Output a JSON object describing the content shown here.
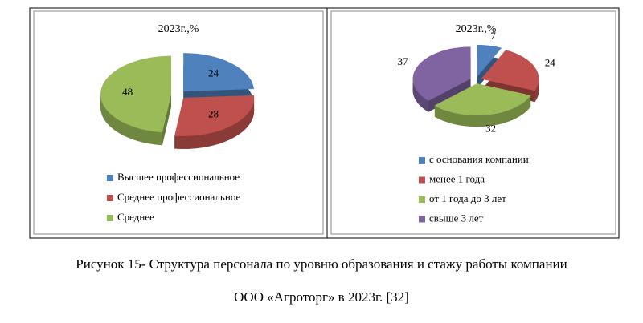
{
  "chart_data": [
    {
      "type": "pie",
      "title": "2023г.,%",
      "categories": [
        "Высшее профессиональное",
        "Среднее профессиональное",
        "Среднее"
      ],
      "values": [
        24,
        28,
        48
      ],
      "colors": [
        "#4f81bd",
        "#c0504d",
        "#9bbb59"
      ]
    },
    {
      "type": "pie",
      "title": "2023г.,%",
      "categories": [
        "с основания компании",
        "менее 1 года",
        "от 1 года до 3 лет",
        "свыше 3 лет"
      ],
      "values": [
        7,
        24,
        32,
        37
      ],
      "colors": [
        "#4f81bd",
        "#c0504d",
        "#9bbb59",
        "#8064a2"
      ]
    }
  ],
  "caption": [
    "Рисунок 15- Структура персонала по уровню образования и стажу работы  компании",
    "ООО «Агроторг» в 2023г. [32]"
  ]
}
